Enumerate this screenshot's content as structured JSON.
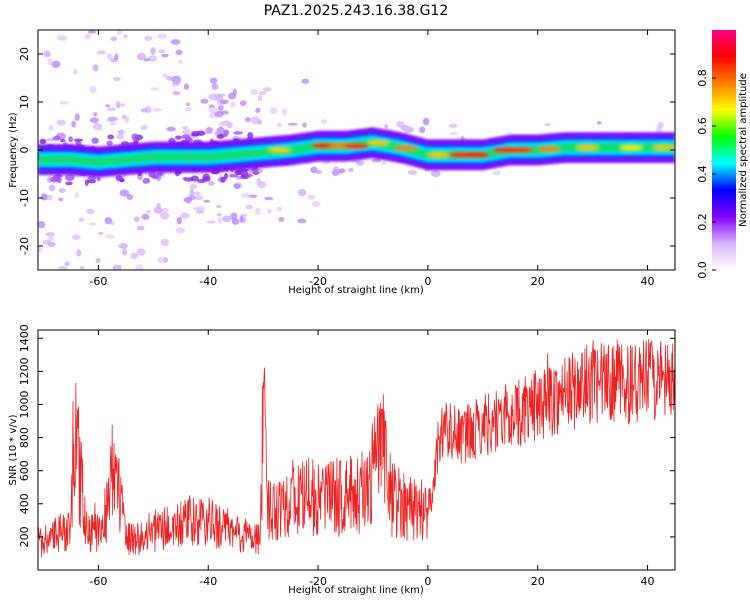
{
  "title": "PAZ1.2025.243.16.38.G12",
  "chart_data": [
    {
      "type": "heatmap",
      "xlabel": "Height of straight line (km)",
      "ylabel": "Frequency (Hz)",
      "xlim": [
        -71,
        45
      ],
      "ylim": [
        -25,
        25
      ],
      "xticks": [
        -60,
        -40,
        -20,
        0,
        20,
        40
      ],
      "yticks": [
        -20,
        -10,
        0,
        10,
        20
      ],
      "ridge_x": [
        -70,
        -65,
        -60,
        -55,
        -50,
        -45,
        -40,
        -35,
        -30,
        -25,
        -20,
        -15,
        -10,
        -5,
        0,
        5,
        10,
        15,
        20,
        25,
        30,
        35,
        40,
        45
      ],
      "ridge_y": [
        -2,
        -2,
        -2.5,
        -2,
        -1.5,
        -1.5,
        -1.5,
        -1,
        -0.5,
        0,
        0.8,
        0.8,
        1.5,
        0.5,
        -1,
        -1,
        -1,
        0,
        0,
        0.5,
        0.5,
        0.5,
        0.5,
        0.5
      ],
      "colorbar": {
        "label": "Normalized spectral amplitude",
        "range": [
          0,
          1
        ],
        "ticks": [
          "0.0",
          "0.2",
          "0.4",
          "0.6",
          "0.8"
        ],
        "colors": [
          "#ffffff",
          "#d9b3ff",
          "#8000ff",
          "#0000ff",
          "#00ffff",
          "#00ff00",
          "#ffff00",
          "#ff8000",
          "#ff0000",
          "#ff0080"
        ]
      }
    },
    {
      "type": "line",
      "xlabel": "Height of straight line (km)",
      "ylabel": "SNR (10 * v/v)",
      "xlim": [
        -71,
        45
      ],
      "ylim": [
        0,
        1450
      ],
      "xticks": [
        -60,
        -40,
        -20,
        0,
        20,
        40
      ],
      "yticks": [
        200,
        400,
        600,
        800,
        1000,
        1200,
        1400
      ],
      "color": "#ee2222",
      "x": [
        -71,
        -68,
        -65,
        -64.5,
        -62,
        -59,
        -57.5,
        -55,
        -52,
        -50,
        -47,
        -44,
        -41,
        -38,
        -35,
        -32,
        -30.5,
        -30,
        -29,
        -26,
        -23,
        -20,
        -17,
        -14,
        -11,
        -8.5,
        -7,
        -5,
        -3,
        -1,
        0,
        1,
        2,
        4,
        6,
        8,
        10,
        12,
        14,
        16,
        18,
        20,
        22,
        24,
        26,
        28,
        30,
        32,
        34,
        36,
        38,
        40,
        42,
        44,
        45
      ],
      "y": [
        160,
        200,
        260,
        860,
        230,
        220,
        690,
        200,
        190,
        240,
        250,
        280,
        290,
        270,
        220,
        200,
        200,
        950,
        360,
        420,
        440,
        430,
        440,
        450,
        470,
        800,
        430,
        420,
        380,
        360,
        380,
        480,
        830,
        860,
        800,
        830,
        880,
        900,
        920,
        950,
        960,
        1000,
        1020,
        1050,
        1080,
        1100,
        1140,
        1120,
        1150,
        1130,
        1110,
        1160,
        1140,
        1120,
        1100
      ]
    }
  ]
}
